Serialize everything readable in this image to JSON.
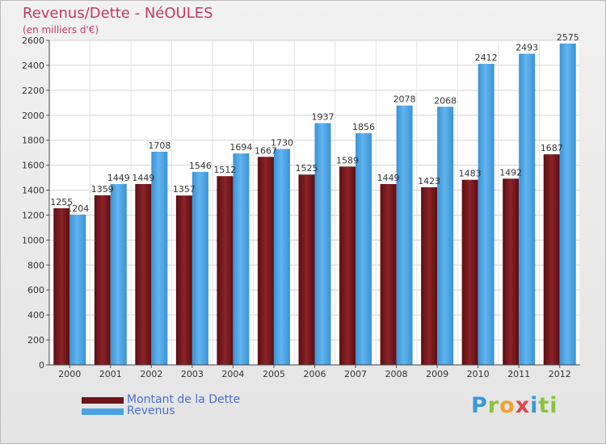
{
  "header": {
    "title": "Revenus/Dette - NéOULES",
    "subtitle": "(en milliers d'€)"
  },
  "colors": {
    "dette": "#7a1a1e",
    "revenus": "#4aa2e3",
    "title": "#c0386a",
    "legend_text": "#4a6fd0"
  },
  "legend": {
    "dette_label": "Montant de la Dette",
    "revenus_label": "Revenus"
  },
  "logo": {
    "l1": "P",
    "l2": "r",
    "l3": "o",
    "l4": "x",
    "l5": "i",
    "l6": "ti"
  },
  "chart_data": {
    "type": "bar",
    "title": "Revenus/Dette - NéOULES",
    "ylabel": "(en milliers d'€)",
    "xlabel": "",
    "ylim": [
      0,
      2600
    ],
    "yticks": [
      0,
      200,
      400,
      600,
      800,
      1000,
      1200,
      1400,
      1600,
      1800,
      2000,
      2200,
      2400,
      2600
    ],
    "grid": true,
    "categories": [
      "2000",
      "2001",
      "2002",
      "2003",
      "2004",
      "2005",
      "2006",
      "2007",
      "2008",
      "2009",
      "2010",
      "2011",
      "2012"
    ],
    "series": [
      {
        "name": "Montant de la Dette",
        "values": [
          1255,
          1359,
          1449,
          1357,
          1512,
          1667,
          1525,
          1589,
          1449,
          1423,
          1483,
          1492,
          1687
        ],
        "labels": [
          "1255",
          "1359",
          "1449",
          "1357",
          "1512",
          "1667",
          "1525",
          "1589",
          "1449",
          "1423",
          "1483",
          "1492",
          "1687"
        ]
      },
      {
        "name": "Revenus",
        "values": [
          1204,
          1449,
          1708,
          1546,
          1694,
          1730,
          1937,
          1856,
          2078,
          2068,
          2412,
          2493,
          2575
        ],
        "labels": [
          "1204",
          "1449",
          "1708",
          "1546",
          "1694",
          "1730",
          "1937",
          "1856",
          "2078",
          "2068",
          "2412",
          "2493",
          "2575"
        ]
      }
    ]
  }
}
